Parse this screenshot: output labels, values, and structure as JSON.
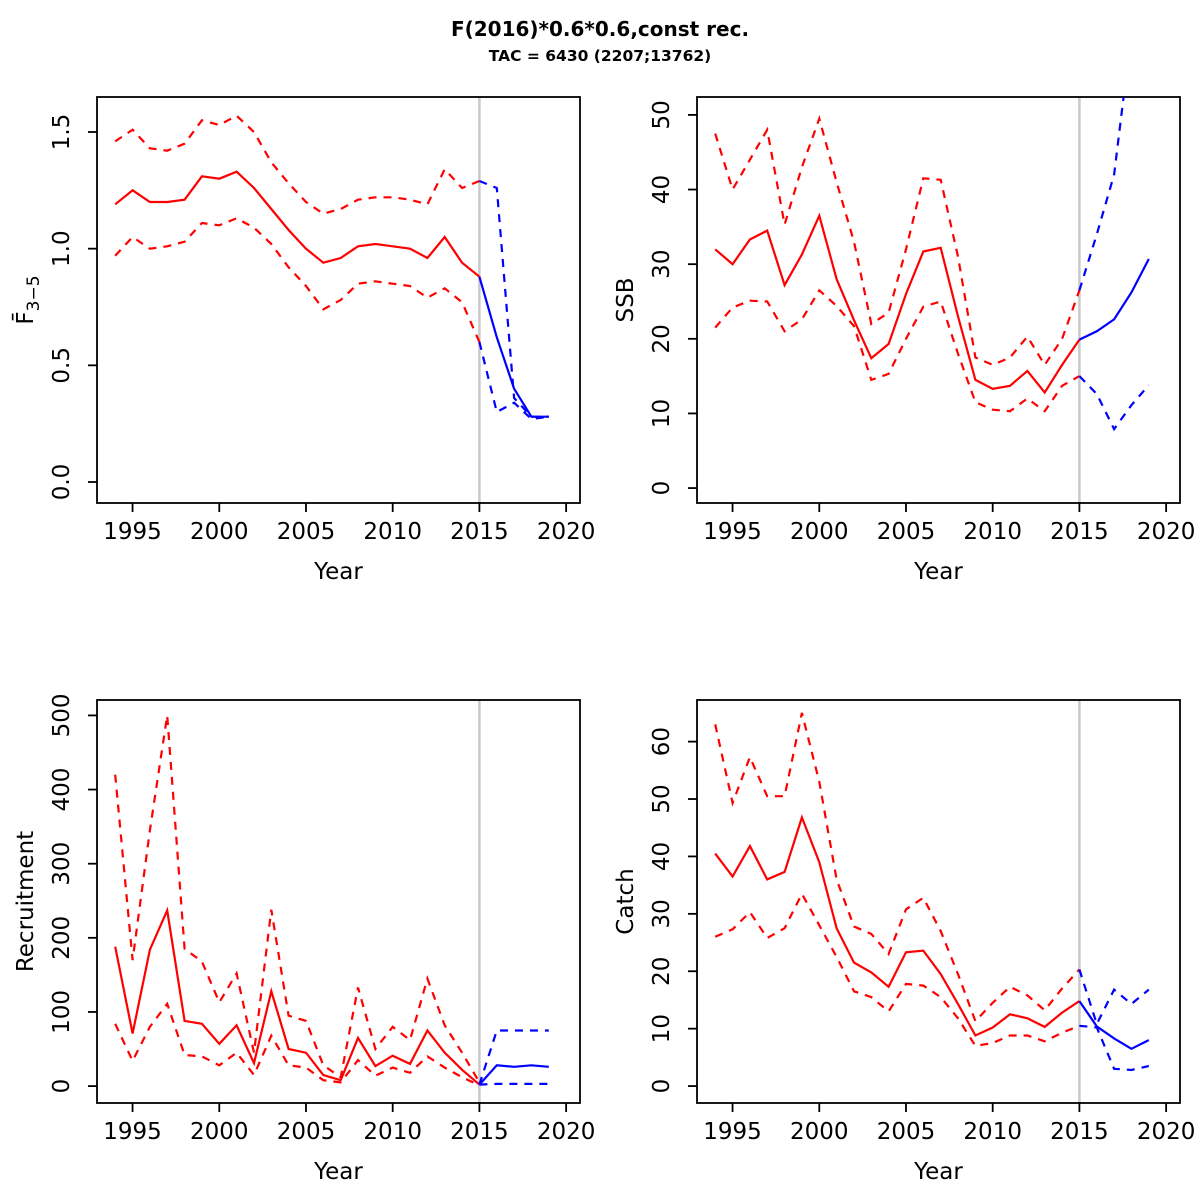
{
  "title": "F(2016)*0.6*0.6,const rec.",
  "subtitle": "TAC = 6430 (2207;13762)",
  "now_year": 2015,
  "colors": {
    "history": "#FF0000",
    "forecast": "#0000FF",
    "now_line": "#C9C9C9",
    "axis": "#000000"
  },
  "chart_data": [
    {
      "id": "f",
      "type": "line",
      "xlabel": "Year",
      "ylabel": "F̄",
      "ylabel_sub": "3−5",
      "xlim": [
        1992.95,
        2020.8
      ],
      "ylim": [
        -0.09,
        1.65
      ],
      "xtick_values": [
        1995,
        2000,
        2005,
        2010,
        2015,
        2020
      ],
      "xtick_labels": [
        "1995",
        "2000",
        "2005",
        "2010",
        "2015",
        "2020"
      ],
      "ytick_values": [
        0,
        0.5,
        1.0,
        1.5
      ],
      "ytick_labels": [
        "0.0",
        "0.5",
        "1.0",
        "1.5"
      ],
      "lines": [
        {
          "name": "history-upper-ci",
          "role": "history",
          "dash": true,
          "x": [
            1994,
            1995,
            1996,
            1997,
            1998,
            1999,
            2000,
            2001,
            2002,
            2003,
            2004,
            2005,
            2006,
            2007,
            2008,
            2009,
            2010,
            2011,
            2012,
            2013,
            2014,
            2015
          ],
          "y": [
            1.46,
            1.51,
            1.43,
            1.42,
            1.45,
            1.55,
            1.53,
            1.57,
            1.5,
            1.37,
            1.28,
            1.2,
            1.15,
            1.17,
            1.21,
            1.22,
            1.22,
            1.21,
            1.19,
            1.34,
            1.26,
            1.29
          ]
        },
        {
          "name": "history-lower-ci",
          "role": "history",
          "dash": true,
          "x": [
            1994,
            1995,
            1996,
            1997,
            1998,
            1999,
            2000,
            2001,
            2002,
            2003,
            2004,
            2005,
            2006,
            2007,
            2008,
            2009,
            2010,
            2011,
            2012,
            2013,
            2014,
            2015
          ],
          "y": [
            0.97,
            1.05,
            1.0,
            1.01,
            1.03,
            1.11,
            1.1,
            1.13,
            1.09,
            1.02,
            0.92,
            0.84,
            0.74,
            0.78,
            0.85,
            0.86,
            0.85,
            0.84,
            0.79,
            0.83,
            0.77,
            0.6
          ]
        },
        {
          "name": "history-median",
          "role": "history",
          "dash": false,
          "x": [
            1994,
            1995,
            1996,
            1997,
            1998,
            1999,
            2000,
            2001,
            2002,
            2003,
            2004,
            2005,
            2006,
            2007,
            2008,
            2009,
            2010,
            2011,
            2012,
            2013,
            2014,
            2015
          ],
          "y": [
            1.19,
            1.25,
            1.2,
            1.2,
            1.21,
            1.31,
            1.3,
            1.33,
            1.26,
            1.17,
            1.08,
            1.0,
            0.94,
            0.96,
            1.01,
            1.02,
            1.01,
            1.0,
            0.96,
            1.05,
            0.94,
            0.88
          ]
        },
        {
          "name": "forecast-upper-ci",
          "role": "forecast",
          "dash": true,
          "x": [
            2015,
            2016,
            2017,
            2018,
            2019
          ],
          "y": [
            1.29,
            1.26,
            0.36,
            0.28,
            0.28
          ]
        },
        {
          "name": "forecast-lower-ci",
          "role": "forecast",
          "dash": true,
          "x": [
            2015,
            2016,
            2017,
            2018,
            2019
          ],
          "y": [
            0.6,
            0.3,
            0.34,
            0.27,
            0.28
          ]
        },
        {
          "name": "forecast-median",
          "role": "forecast",
          "dash": false,
          "x": [
            2015,
            2016,
            2017,
            2018,
            2019
          ],
          "y": [
            0.88,
            0.62,
            0.4,
            0.28,
            0.28
          ]
        }
      ]
    },
    {
      "id": "ssb",
      "type": "line",
      "xlabel": "Year",
      "ylabel": "SSB",
      "ylabel_sub": "",
      "xlim": [
        1992.95,
        2020.8
      ],
      "ylim": [
        -2.0,
        52.4
      ],
      "xtick_values": [
        1995,
        2000,
        2005,
        2010,
        2015,
        2020
      ],
      "xtick_labels": [
        "1995",
        "2000",
        "2005",
        "2010",
        "2015",
        "2020"
      ],
      "ytick_values": [
        0,
        10,
        20,
        30,
        40,
        50
      ],
      "ytick_labels": [
        "0",
        "10",
        "20",
        "30",
        "40",
        "50"
      ],
      "lines": [
        {
          "name": "history-upper-ci",
          "role": "history",
          "dash": true,
          "x": [
            1994,
            1995,
            1996,
            1997,
            1998,
            1999,
            2000,
            2001,
            2002,
            2003,
            2004,
            2005,
            2006,
            2007,
            2008,
            2009,
            2010,
            2011,
            2012,
            2013,
            2014,
            2015
          ],
          "y": [
            47.5,
            40,
            44,
            48,
            35.3,
            43,
            49.5,
            41,
            33,
            22,
            23.5,
            32,
            41.5,
            41.3,
            31,
            17.5,
            16.5,
            17.5,
            20.3,
            16.5,
            20,
            26.5
          ]
        },
        {
          "name": "history-lower-ci",
          "role": "history",
          "dash": true,
          "x": [
            1994,
            1995,
            1996,
            1997,
            1998,
            1999,
            2000,
            2001,
            2002,
            2003,
            2004,
            2005,
            2006,
            2007,
            2008,
            2009,
            2010,
            2011,
            2012,
            2013,
            2014,
            2015
          ],
          "y": [
            21.5,
            24.2,
            25.1,
            25,
            21,
            22.6,
            26.5,
            24.4,
            21.7,
            14.5,
            15.3,
            20,
            24.3,
            25,
            18,
            11.5,
            10.5,
            10.3,
            12,
            10.3,
            13.7,
            15
          ]
        },
        {
          "name": "history-median",
          "role": "history",
          "dash": false,
          "x": [
            1994,
            1995,
            1996,
            1997,
            1998,
            1999,
            2000,
            2001,
            2002,
            2003,
            2004,
            2005,
            2006,
            2007,
            2008,
            2009,
            2010,
            2011,
            2012,
            2013,
            2014,
            2015
          ],
          "y": [
            32,
            30,
            33.3,
            34.5,
            27.2,
            31.3,
            36.5,
            28,
            22.5,
            17.4,
            19.3,
            26,
            31.7,
            32.2,
            23,
            14.5,
            13.3,
            13.7,
            15.7,
            12.8,
            16.5,
            19.9
          ]
        },
        {
          "name": "forecast-upper-ci",
          "role": "forecast",
          "dash": true,
          "x": [
            2015,
            2016,
            2017,
            2017.55
          ],
          "y": [
            26.5,
            34,
            42,
            52.4
          ]
        },
        {
          "name": "forecast-lower-ci",
          "role": "forecast",
          "dash": true,
          "x": [
            2015,
            2016,
            2017,
            2018,
            2019
          ],
          "y": [
            15,
            12.6,
            7.9,
            11.1,
            13.8
          ]
        },
        {
          "name": "forecast-median",
          "role": "forecast",
          "dash": false,
          "x": [
            2015,
            2016,
            2017,
            2018,
            2019
          ],
          "y": [
            19.9,
            21,
            22.6,
            26.2,
            30.7
          ]
        }
      ]
    },
    {
      "id": "recruitment",
      "type": "line",
      "xlabel": "Year",
      "ylabel": "Recruitment",
      "ylabel_sub": "",
      "xlim": [
        1992.95,
        2020.8
      ],
      "ylim": [
        -22.8,
        520.8
      ],
      "xtick_values": [
        1995,
        2000,
        2005,
        2010,
        2015,
        2020
      ],
      "xtick_labels": [
        "1995",
        "2000",
        "2005",
        "2010",
        "2015",
        "2020"
      ],
      "ytick_values": [
        0,
        100,
        200,
        300,
        400,
        500
      ],
      "ytick_labels": [
        "0",
        "100",
        "200",
        "300",
        "400",
        "500"
      ],
      "lines": [
        {
          "name": "history-upper-ci",
          "role": "history",
          "dash": true,
          "x": [
            1994,
            1995,
            1996,
            1997,
            1998,
            1999,
            2000,
            2001,
            2002,
            2003,
            2004,
            2005,
            2006,
            2007,
            2008,
            2009,
            2010,
            2011,
            2012,
            2013,
            2014,
            2015
          ],
          "y": [
            420,
            170,
            345,
            500,
            185,
            168,
            113,
            152,
            45,
            238,
            95,
            88,
            28,
            12,
            133,
            50,
            80,
            62,
            145,
            82,
            45,
            5
          ]
        },
        {
          "name": "history-lower-ci",
          "role": "history",
          "dash": true,
          "x": [
            1994,
            1995,
            1996,
            1997,
            1998,
            1999,
            2000,
            2001,
            2002,
            2003,
            2004,
            2005,
            2006,
            2007,
            2008,
            2009,
            2010,
            2011,
            2012,
            2013,
            2014,
            2015
          ],
          "y": [
            84,
            34,
            80,
            111,
            42,
            40,
            28,
            45,
            15,
            68,
            28,
            25,
            8,
            5,
            35,
            14,
            25,
            18,
            40,
            25,
            12,
            1
          ]
        },
        {
          "name": "history-median",
          "role": "history",
          "dash": false,
          "x": [
            1994,
            1995,
            1996,
            1997,
            1998,
            1999,
            2000,
            2001,
            2002,
            2003,
            2004,
            2005,
            2006,
            2007,
            2008,
            2009,
            2010,
            2011,
            2012,
            2013,
            2014,
            2015
          ],
          "y": [
            188,
            71,
            184,
            237,
            88,
            84,
            57,
            82,
            31,
            128,
            50,
            45,
            15,
            8,
            65,
            27,
            41,
            30,
            75,
            45,
            22,
            2
          ]
        },
        {
          "name": "forecast-upper-ci",
          "role": "forecast",
          "dash": true,
          "x": [
            2015,
            2016,
            2017,
            2018,
            2019
          ],
          "y": [
            2,
            75,
            75,
            75,
            75
          ]
        },
        {
          "name": "forecast-lower-ci",
          "role": "forecast",
          "dash": true,
          "x": [
            2015,
            2016,
            2017,
            2018,
            2019
          ],
          "y": [
            2,
            3,
            3,
            3,
            3
          ]
        },
        {
          "name": "forecast-median",
          "role": "forecast",
          "dash": false,
          "x": [
            2015,
            2016,
            2017,
            2018,
            2019
          ],
          "y": [
            2,
            28,
            26,
            28,
            26
          ]
        }
      ]
    },
    {
      "id": "catch",
      "type": "line",
      "xlabel": "Year",
      "ylabel": "Catch",
      "ylabel_sub": "",
      "xlim": [
        1992.95,
        2020.8
      ],
      "ylim": [
        -2.95,
        67.25
      ],
      "xtick_values": [
        1995,
        2000,
        2005,
        2010,
        2015,
        2020
      ],
      "xtick_labels": [
        "1995",
        "2000",
        "2005",
        "2010",
        "2015",
        "2020"
      ],
      "ytick_values": [
        0,
        10,
        20,
        30,
        40,
        50,
        60
      ],
      "ytick_labels": [
        "0",
        "10",
        "20",
        "30",
        "40",
        "50",
        "60"
      ],
      "lines": [
        {
          "name": "history-upper-ci",
          "role": "history",
          "dash": true,
          "x": [
            1994,
            1995,
            1996,
            1997,
            1998,
            1999,
            2000,
            2001,
            2002,
            2003,
            2004,
            2005,
            2006,
            2007,
            2008,
            2009,
            2010,
            2011,
            2012,
            2013,
            2014,
            2015
          ],
          "y": [
            63,
            49.3,
            57.3,
            50.5,
            50.5,
            65,
            53,
            36,
            27.8,
            26.5,
            23,
            30.8,
            32.8,
            27,
            19.5,
            11.3,
            14.5,
            17.3,
            15.8,
            13.2,
            17,
            20.3
          ]
        },
        {
          "name": "history-lower-ci",
          "role": "history",
          "dash": true,
          "x": [
            1994,
            1995,
            1996,
            1997,
            1998,
            1999,
            2000,
            2001,
            2002,
            2003,
            2004,
            2005,
            2006,
            2007,
            2008,
            2009,
            2010,
            2011,
            2012,
            2013,
            2014,
            2015
          ],
          "y": [
            26,
            27.3,
            30.3,
            25.8,
            27.5,
            33.5,
            28,
            22.5,
            16.5,
            15.5,
            13,
            17.8,
            17.5,
            15.5,
            11.8,
            7,
            7.5,
            8.8,
            8.8,
            7.8,
            9.3,
            10.5
          ]
        },
        {
          "name": "history-median",
          "role": "history",
          "dash": false,
          "x": [
            1994,
            1995,
            1996,
            1997,
            1998,
            1999,
            2000,
            2001,
            2002,
            2003,
            2004,
            2005,
            2006,
            2007,
            2008,
            2009,
            2010,
            2011,
            2012,
            2013,
            2014,
            2015
          ],
          "y": [
            40.5,
            36.5,
            41.8,
            36,
            37.3,
            46.8,
            39,
            27.5,
            21.5,
            19.8,
            17.3,
            23.3,
            23.6,
            19.5,
            14.3,
            8.8,
            10.2,
            12.5,
            11.8,
            10.3,
            12.8,
            14.8
          ]
        },
        {
          "name": "forecast-upper-ci",
          "role": "forecast",
          "dash": true,
          "x": [
            2015,
            2016,
            2017,
            2018,
            2019
          ],
          "y": [
            20.3,
            10.8,
            16.8,
            14.3,
            16.8
          ]
        },
        {
          "name": "forecast-lower-ci",
          "role": "forecast",
          "dash": true,
          "x": [
            2015,
            2016,
            2017,
            2018,
            2019
          ],
          "y": [
            10.5,
            10.2,
            3.0,
            2.8,
            3.5
          ]
        },
        {
          "name": "forecast-median",
          "role": "forecast",
          "dash": false,
          "x": [
            2015,
            2016,
            2017,
            2018,
            2019
          ],
          "y": [
            14.8,
            10.4,
            8.3,
            6.5,
            8.0
          ]
        }
      ]
    }
  ]
}
